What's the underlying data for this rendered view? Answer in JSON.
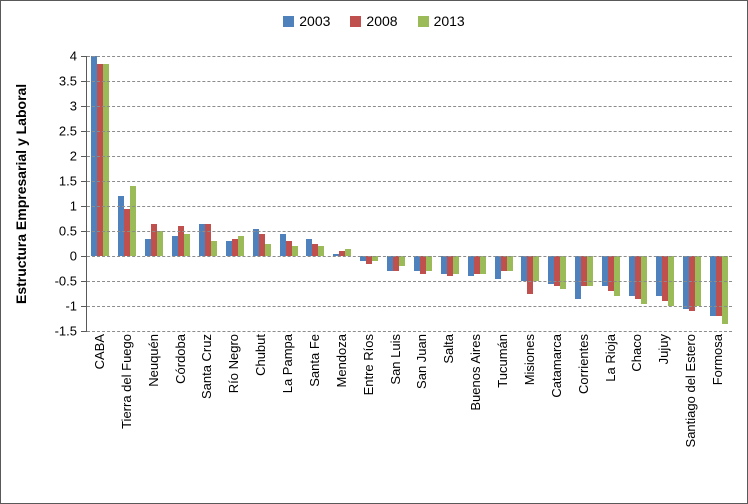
{
  "chart_data": {
    "type": "bar",
    "title": "",
    "xlabel": "",
    "ylabel": "Estructura Empresarial y Laboral",
    "ylim": [
      -1.5,
      4
    ],
    "ytick_step": 0.5,
    "grid": "horizontal-dashed",
    "legend_position": "top-center",
    "categories": [
      "CABA",
      "Tierra del Fuego",
      "Neuquén",
      "Córdoba",
      "Santa Cruz",
      "Río Negro",
      "Chubut",
      "La Pampa",
      "Santa Fe",
      "Mendoza",
      "Entre Ríos",
      "San Luis",
      "San Juan",
      "Salta",
      "Buenos Aires",
      "Tucumán",
      "Misiones",
      "Catamarca",
      "Corrientes",
      "La Rioja",
      "Chaco",
      "Jujuy",
      "Santiago del Estero",
      "Formosa"
    ],
    "series": [
      {
        "name": "2003",
        "color": "#4F81BD",
        "values": [
          4.0,
          1.2,
          0.35,
          0.4,
          0.65,
          0.3,
          0.55,
          0.45,
          0.35,
          0.05,
          -0.1,
          -0.3,
          -0.3,
          -0.35,
          -0.4,
          -0.45,
          -0.5,
          -0.55,
          -0.85,
          -0.6,
          -0.8,
          -0.8,
          -1.05,
          -1.2
        ]
      },
      {
        "name": "2008",
        "color": "#C0504D",
        "values": [
          3.85,
          0.95,
          0.65,
          0.6,
          0.65,
          0.35,
          0.45,
          0.3,
          0.25,
          0.1,
          -0.15,
          -0.3,
          -0.35,
          -0.4,
          -0.35,
          -0.3,
          -0.75,
          -0.6,
          -0.6,
          -0.7,
          -0.85,
          -0.9,
          -1.1,
          -1.2
        ]
      },
      {
        "name": "2013",
        "color": "#9BBB59",
        "values": [
          3.85,
          1.4,
          0.5,
          0.45,
          0.3,
          0.4,
          0.25,
          0.2,
          0.2,
          0.15,
          -0.1,
          -0.2,
          -0.3,
          -0.35,
          -0.35,
          -0.3,
          -0.5,
          -0.65,
          -0.6,
          -0.8,
          -0.95,
          -1.0,
          -1.0,
          -1.35
        ]
      }
    ]
  }
}
